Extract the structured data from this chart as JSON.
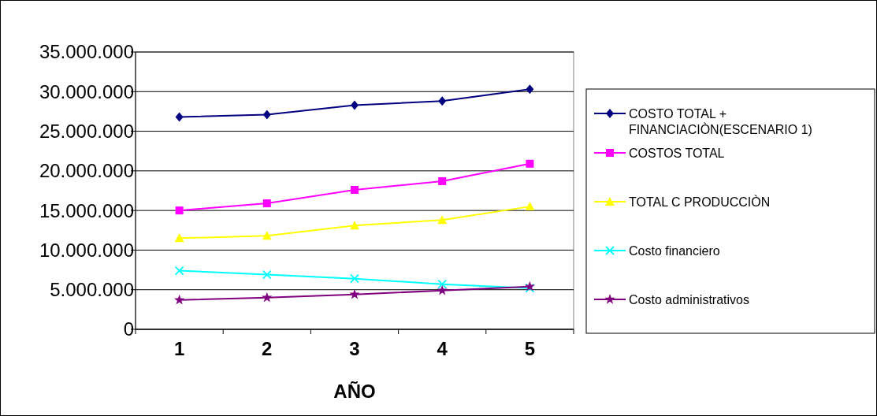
{
  "chart_data": {
    "type": "line",
    "xlabel": "AÑO",
    "categories": [
      "1",
      "2",
      "3",
      "4",
      "5"
    ],
    "ylim": [
      0,
      35000000
    ],
    "yticks": [
      {
        "value": 0,
        "label": "0"
      },
      {
        "value": 5000000,
        "label": "5.000.000"
      },
      {
        "value": 10000000,
        "label": "10.000.000"
      },
      {
        "value": 15000000,
        "label": "15.000.000"
      },
      {
        "value": 20000000,
        "label": "20.000.000"
      },
      {
        "value": 25000000,
        "label": "25.000.000"
      },
      {
        "value": 30000000,
        "label": "30.000.000"
      },
      {
        "value": 35000000,
        "label": "35.000.000"
      }
    ],
    "grid": "y",
    "legend": "right",
    "line_style": "solid",
    "series": [
      {
        "name": "COSTO TOTAL + FINANCIACIÒN(ESCENARIO 1)",
        "color": "#000080",
        "marker": "diamond",
        "values": [
          26800000,
          27100000,
          28300000,
          28800000,
          30300000
        ]
      },
      {
        "name": "COSTOS TOTAL",
        "color": "#ff00ff",
        "marker": "square",
        "values": [
          15000000,
          15900000,
          17600000,
          18700000,
          20900000
        ]
      },
      {
        "name": "TOTAL C PRODUCCIÒN",
        "color": "#ffff00",
        "marker": "triangle",
        "values": [
          11500000,
          11800000,
          13100000,
          13800000,
          15500000
        ]
      },
      {
        "name": "Costo financiero",
        "color": "#00ffff",
        "marker": "cross",
        "values": [
          7400000,
          6900000,
          6400000,
          5700000,
          5200000
        ]
      },
      {
        "name": "Costo administrativos",
        "color": "#800080",
        "marker": "star",
        "values": [
          3700000,
          4000000,
          4400000,
          4900000,
          5400000
        ]
      }
    ]
  }
}
